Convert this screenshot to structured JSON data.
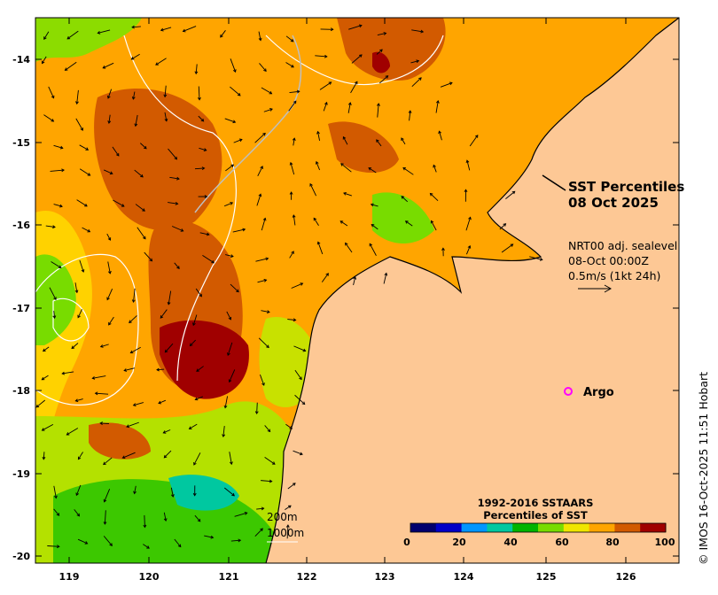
{
  "map": {
    "title_line1": "SST Percentiles",
    "title_line2": "08 Oct 2025",
    "current_info": {
      "line1": "NRT00 adj. sealevel",
      "line2": "08-Oct 00:00Z",
      "line3": "0.5m/s (1kt 24h)"
    },
    "argo_label": "Argo",
    "contour_labels": [
      "200m",
      "1000m"
    ],
    "colorbar": {
      "title_line1": "1992-2016 SSTAARS",
      "title_line2": "Percentiles of SST",
      "ticks": [
        "0",
        "20",
        "40",
        "60",
        "80",
        "100"
      ],
      "colors": [
        "#00006e",
        "#0000c8",
        "#0096ff",
        "#00c8a0",
        "#00b400",
        "#78dc00",
        "#f0e600",
        "#ffa500",
        "#d25a00",
        "#a00000"
      ]
    },
    "credit": "© IMOS 16-Oct-2025 11:51 Hobart",
    "lat_labels": [
      "-14",
      "-15",
      "-16",
      "-17",
      "-18",
      "-19",
      "-20"
    ],
    "lon_labels": [
      "119",
      "120",
      "121",
      "122",
      "123",
      "124",
      "125",
      "126"
    ],
    "land_color": "#fdc895",
    "argo_color": "#ff00ff"
  }
}
